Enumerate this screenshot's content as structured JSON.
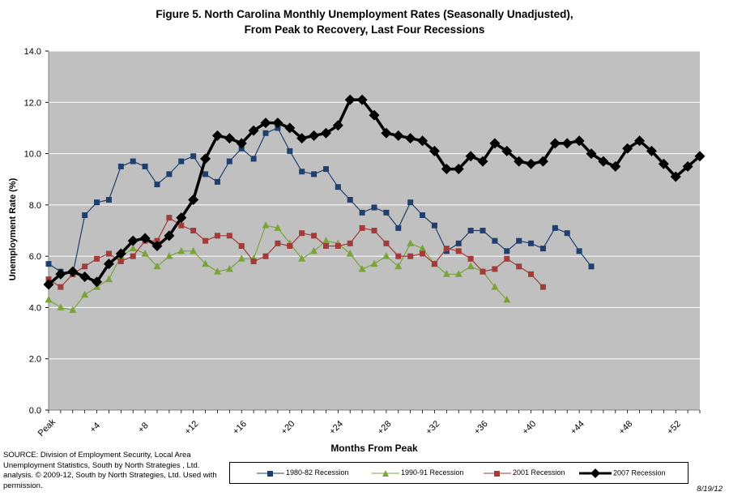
{
  "chart_data": {
    "type": "line",
    "title_line1": "Figure 5. North Carolina Monthly Unemployment Rates (Seasonally Unadjusted),",
    "title_line2": "From Peak to Recovery,  Last Four Recessions",
    "xlabel": "Months From Peak",
    "ylabel": "Unemployment Rate (%)",
    "ylim": [
      0,
      14
    ],
    "yticks": [
      "0.0",
      "2.0",
      "4.0",
      "6.0",
      "8.0",
      "10.0",
      "12.0",
      "14.0"
    ],
    "xlim": [
      0,
      54
    ],
    "xticks": [
      {
        "x": 0,
        "label": "Peak"
      },
      {
        "x": 4,
        "label": "+4"
      },
      {
        "x": 8,
        "label": "+8"
      },
      {
        "x": 12,
        "label": "+12"
      },
      {
        "x": 16,
        "label": "+16"
      },
      {
        "x": 20,
        "label": "+20"
      },
      {
        "x": 24,
        "label": "+24"
      },
      {
        "x": 28,
        "label": "+28"
      },
      {
        "x": 32,
        "label": "+32"
      },
      {
        "x": 36,
        "label": "+36"
      },
      {
        "x": 40,
        "label": "+40"
      },
      {
        "x": 44,
        "label": "+44"
      },
      {
        "x": 48,
        "label": "+48"
      },
      {
        "x": 52,
        "label": "+52"
      }
    ],
    "grid": "horizontal",
    "legend_position": "bottom",
    "series": [
      {
        "name": "1980-82 Recession",
        "color": "#1f3f6e",
        "marker": "square",
        "values": [
          5.7,
          5.4,
          5.3,
          7.6,
          8.1,
          8.2,
          9.5,
          9.7,
          9.5,
          8.8,
          9.2,
          9.7,
          9.9,
          9.2,
          8.9,
          9.7,
          10.2,
          9.8,
          10.8,
          11.0,
          10.1,
          9.3,
          9.2,
          9.4,
          8.7,
          8.2,
          7.7,
          7.9,
          7.7,
          7.1,
          8.1,
          7.6,
          7.2,
          6.2,
          6.5,
          7.0,
          7.0,
          6.6,
          6.2,
          6.6,
          6.5,
          6.3,
          7.1,
          6.9,
          6.2,
          5.6
        ]
      },
      {
        "name": "1990-91 Recession",
        "color": "#7aa43a",
        "marker": "triangle",
        "values": [
          4.3,
          4.0,
          3.9,
          4.5,
          4.8,
          5.1,
          6.0,
          6.3,
          6.1,
          5.6,
          6.0,
          6.2,
          6.2,
          5.7,
          5.4,
          5.5,
          5.9,
          5.9,
          7.2,
          7.1,
          6.5,
          5.9,
          6.2,
          6.6,
          6.5,
          6.1,
          5.5,
          5.7,
          6.0,
          5.6,
          6.5,
          6.3,
          5.7,
          5.3,
          5.3,
          5.6,
          5.4,
          4.8,
          4.3
        ]
      },
      {
        "name": "2001 Recession",
        "color": "#a33b3b",
        "marker": "square",
        "values": [
          5.1,
          4.8,
          5.3,
          5.6,
          5.9,
          6.1,
          5.8,
          6.0,
          6.6,
          6.6,
          7.5,
          7.2,
          7.0,
          6.6,
          6.8,
          6.8,
          6.4,
          5.8,
          6.0,
          6.5,
          6.4,
          6.9,
          6.8,
          6.4,
          6.4,
          6.5,
          7.1,
          7.0,
          6.5,
          6.0,
          6.0,
          6.1,
          5.7,
          6.3,
          6.2,
          5.9,
          5.4,
          5.5,
          5.9,
          5.6,
          5.3,
          4.8
        ]
      },
      {
        "name": "2007 Recession",
        "color": "#000000",
        "marker": "diamond",
        "values": [
          4.9,
          5.3,
          5.4,
          5.2,
          5.0,
          5.7,
          6.1,
          6.6,
          6.7,
          6.4,
          6.8,
          7.5,
          8.2,
          9.8,
          10.7,
          10.6,
          10.4,
          10.9,
          11.2,
          11.2,
          11.0,
          10.6,
          10.7,
          10.8,
          11.1,
          12.1,
          12.1,
          11.5,
          10.8,
          10.7,
          10.6,
          10.5,
          10.1,
          9.4,
          9.4,
          9.9,
          9.7,
          10.4,
          10.1,
          9.7,
          9.6,
          9.7,
          10.4,
          10.4,
          10.5,
          10.0,
          9.7,
          9.5,
          10.2,
          10.5,
          10.1,
          9.6,
          9.1,
          9.5,
          9.9
        ]
      }
    ]
  },
  "source_note": {
    "line1": "SOURCE:  Division of Employment Security, Local Area",
    "line2": "Unemployment Statistics, South by North Strategies , Ltd.",
    "line3": "analysis. © 2009-12, South by North Strategies, Ltd. Used with",
    "line4": "permission."
  },
  "date_stamp": "8/19/12"
}
